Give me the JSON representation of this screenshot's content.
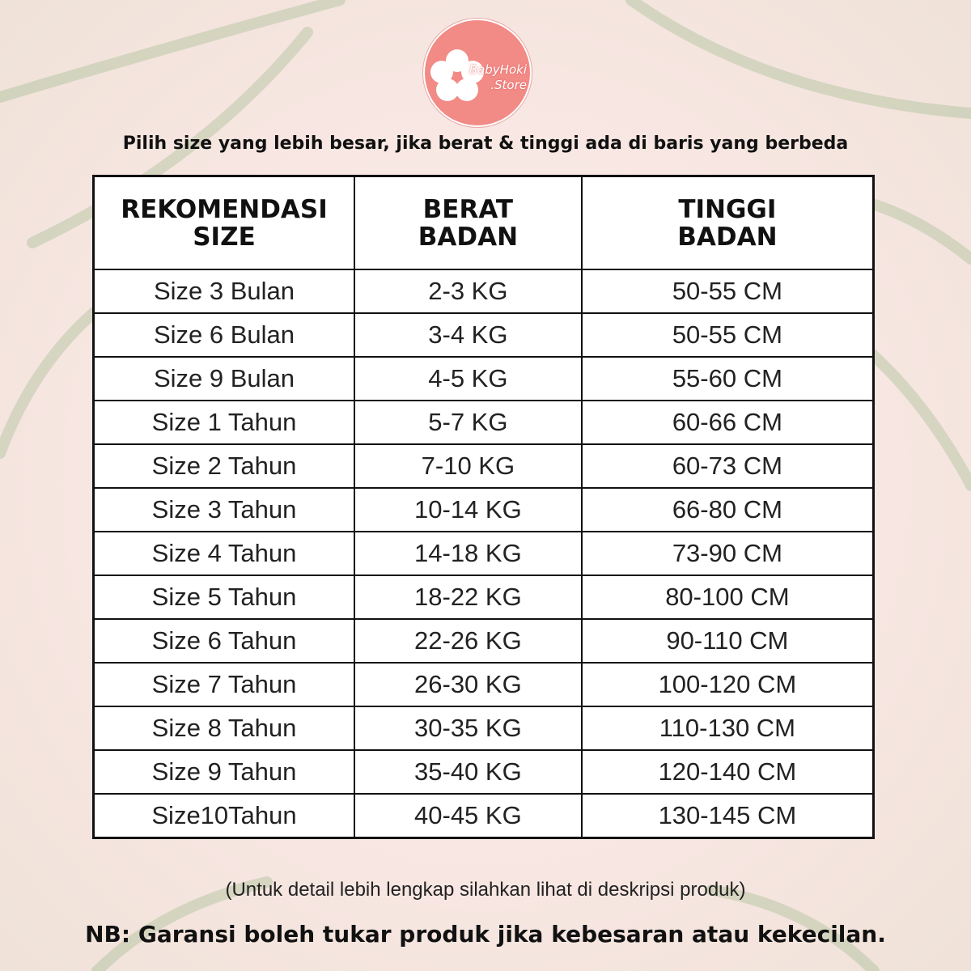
{
  "logo": {
    "line1": "BabyHoki",
    "line2": ".Store",
    "color": "#f28a86"
  },
  "note_top": "Pilih size yang lebih besar, jika berat & tinggi ada di baris yang berbeda",
  "table": {
    "headers": [
      [
        "REKOMENDASI",
        "SIZE"
      ],
      [
        "BERAT",
        "BADAN"
      ],
      [
        "TINGGI",
        "BADAN"
      ]
    ],
    "rows": [
      [
        "Size 3 Bulan",
        "2-3 KG",
        "50-55 CM"
      ],
      [
        "Size 6 Bulan",
        "3-4 KG",
        "50-55 CM"
      ],
      [
        "Size 9 Bulan",
        "4-5 KG",
        "55-60 CM"
      ],
      [
        "Size 1 Tahun",
        "5-7 KG",
        "60-66 CM"
      ],
      [
        "Size 2 Tahun",
        "7-10 KG",
        "60-73 CM"
      ],
      [
        "Size 3 Tahun",
        "10-14 KG",
        "66-80 CM"
      ],
      [
        "Size 4 Tahun",
        "14-18 KG",
        "73-90 CM"
      ],
      [
        "Size 5 Tahun",
        "18-22 KG",
        "80-100 CM"
      ],
      [
        "Size 6 Tahun",
        "22-26 KG",
        "90-110 CM"
      ],
      [
        "Size 7 Tahun",
        "26-30 KG",
        "100-120 CM"
      ],
      [
        "Size 8 Tahun",
        "30-35 KG",
        "110-130 CM"
      ],
      [
        "Size 9 Tahun",
        "35-40 KG",
        "120-140 CM"
      ],
      [
        "Size10Tahun",
        "40-45 KG",
        "130-145 CM"
      ]
    ]
  },
  "subnote": "(Untuk detail lebih lengkap silahkan lihat di deskripsi produk)",
  "nb": "NB: Garansi boleh tukar produk jika kebesaran atau kekecilan."
}
